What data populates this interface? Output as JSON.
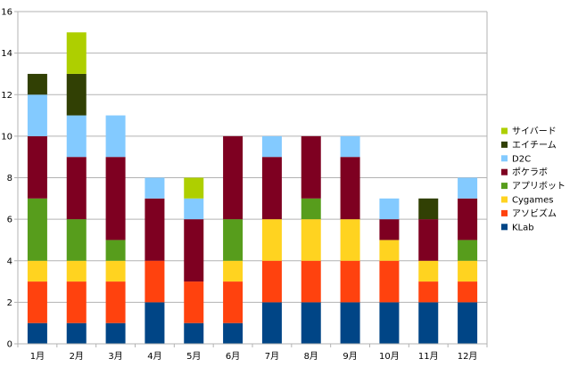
{
  "chart_data": {
    "type": "bar",
    "stacked": true,
    "categories": [
      "1月",
      "2月",
      "3月",
      "4月",
      "5月",
      "6月",
      "7月",
      "8月",
      "9月",
      "10月",
      "11月",
      "12月"
    ],
    "ylim": [
      0,
      16
    ],
    "yticks": [
      0,
      2,
      4,
      6,
      8,
      10,
      12,
      14,
      16
    ],
    "grid": true,
    "legend_position": "right",
    "series": [
      {
        "name": "KLab",
        "color": "#004586",
        "values": [
          1,
          1,
          1,
          2,
          1,
          1,
          2,
          2,
          2,
          2,
          2,
          2
        ]
      },
      {
        "name": "アソビズム",
        "color": "#ff420e",
        "values": [
          2,
          2,
          2,
          2,
          2,
          2,
          2,
          2,
          2,
          2,
          1,
          1
        ]
      },
      {
        "name": "Cygames",
        "color": "#ffd320",
        "values": [
          1,
          1,
          1,
          0,
          0,
          1,
          2,
          2,
          2,
          1,
          1,
          1
        ]
      },
      {
        "name": "アプリボット",
        "color": "#579d1c",
        "values": [
          3,
          2,
          1,
          0,
          0,
          2,
          0,
          1,
          0,
          0,
          0,
          1
        ]
      },
      {
        "name": "ポケラボ",
        "color": "#7e0021",
        "values": [
          3,
          3,
          4,
          3,
          3,
          4,
          3,
          3,
          3,
          1,
          2,
          2
        ]
      },
      {
        "name": "D2C",
        "color": "#83caff",
        "values": [
          2,
          2,
          2,
          1,
          1,
          0,
          1,
          0,
          1,
          1,
          0,
          1
        ]
      },
      {
        "name": "エイチーム",
        "color": "#314004",
        "values": [
          1,
          2,
          0,
          0,
          0,
          0,
          0,
          0,
          0,
          0,
          1,
          0
        ]
      },
      {
        "name": "サイバード",
        "color": "#aecf00",
        "values": [
          0,
          2,
          0,
          0,
          1,
          0,
          0,
          0,
          0,
          0,
          0,
          0
        ]
      }
    ]
  }
}
